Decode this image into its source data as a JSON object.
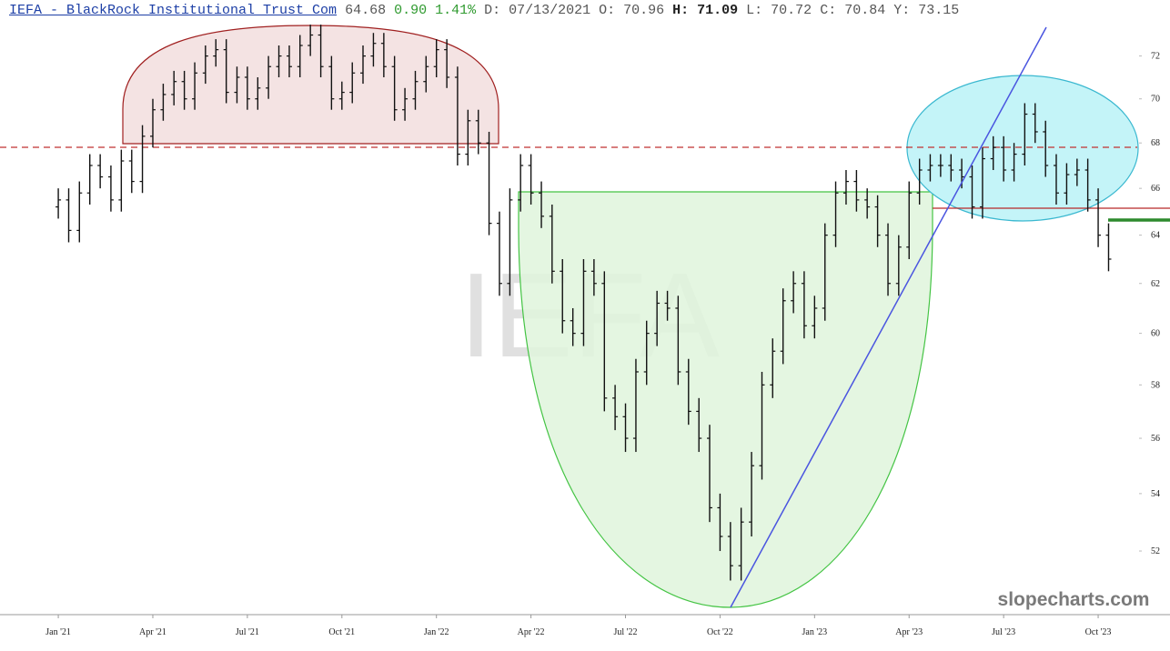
{
  "header": {
    "symbol": "IEFA - BlackRock Institutional Trust Com",
    "last": "64.68",
    "change": "0.90",
    "change_pct": "1.41%",
    "date": "D: 07/13/2021",
    "open": "O: 70.96",
    "high": "H: 71.09",
    "low": "L: 70.72",
    "close": "C: 70.84",
    "prev": "Y: 73.15"
  },
  "watermark": "IEFA",
  "brand": "slopecharts.com",
  "chart_data": {
    "type": "ohlc",
    "color": "#111111",
    "log_scale": true,
    "xlim": [
      -1.85,
      34.24
    ],
    "ylim": [
      49.87,
      74.7
    ],
    "xticks": [
      {
        "value": 0,
        "label": "Jan '21"
      },
      {
        "value": 3,
        "label": "Apr '21"
      },
      {
        "value": 6,
        "label": "Jul '21"
      },
      {
        "value": 9,
        "label": "Oct '21"
      },
      {
        "value": 12,
        "label": "Jan '22"
      },
      {
        "value": 15,
        "label": "Apr '22"
      },
      {
        "value": 18,
        "label": "Jul '22"
      },
      {
        "value": 21,
        "label": "Oct '22"
      },
      {
        "value": 24,
        "label": "Jan '23"
      },
      {
        "value": 27,
        "label": "Apr '23"
      },
      {
        "value": 30,
        "label": "Jul '23"
      },
      {
        "value": 33,
        "label": "Oct '23"
      }
    ],
    "yticks": [
      52,
      54,
      56,
      58,
      60,
      62,
      64,
      66,
      68,
      70,
      72
    ],
    "x": [
      0,
      0.33,
      0.67,
      1,
      1.33,
      1.67,
      2,
      2.33,
      2.67,
      3,
      3.33,
      3.67,
      4,
      4.33,
      4.67,
      5,
      5.33,
      5.67,
      6,
      6.33,
      6.67,
      7,
      7.33,
      7.67,
      8,
      8.33,
      8.67,
      9,
      9.33,
      9.67,
      10,
      10.33,
      10.67,
      11,
      11.33,
      11.67,
      12,
      12.33,
      12.67,
      13,
      13.33,
      13.67,
      14,
      14.33,
      14.67,
      15,
      15.33,
      15.67,
      16,
      16.33,
      16.67,
      17,
      17.33,
      17.67,
      18,
      18.33,
      18.67,
      19,
      19.33,
      19.67,
      20,
      20.33,
      20.67,
      21,
      21.33,
      21.67,
      22,
      22.33,
      22.67,
      23,
      23.33,
      23.67,
      24,
      24.33,
      24.67,
      25,
      25.33,
      25.67,
      26,
      26.33,
      26.67,
      27,
      27.33,
      27.67,
      28,
      28.33,
      28.67,
      29,
      29.33,
      29.67,
      30,
      30.33,
      30.67,
      31,
      31.33,
      31.67,
      32,
      32.33,
      32.67,
      33,
      33.33
    ],
    "open": [
      65.2,
      65.5,
      64.2,
      65.8,
      67,
      66.5,
      65.5,
      67.2,
      66.3,
      68.3,
      69.5,
      70.2,
      70.8,
      70,
      71.2,
      72,
      72.3,
      70.3,
      71,
      70,
      70.5,
      71.5,
      72,
      71.5,
      72.5,
      73,
      71.5,
      70,
      70.3,
      71.2,
      72,
      72.6,
      71.5,
      69.5,
      70,
      70.8,
      71.5,
      72.3,
      71,
      67.5,
      69,
      68,
      64.5,
      62,
      65.5,
      67,
      65.8,
      64.8,
      62.5,
      60.5,
      60,
      62.5,
      62,
      57.5,
      56.8,
      56,
      58.5,
      60,
      61.2,
      61,
      58.5,
      57,
      56,
      53.5,
      52.5,
      51.5,
      53,
      55,
      58,
      59.3,
      61.3,
      62,
      60.3,
      61,
      64,
      65.8,
      66.3,
      65.5,
      65.2,
      64,
      62,
      63.5,
      65.8,
      66.8,
      67,
      67,
      66.8,
      66.5,
      65.2,
      67.3,
      67.8,
      66.8,
      67.5,
      69.3,
      68.5,
      67,
      65.8,
      66.6,
      66.8,
      65.5,
      64
    ],
    "high": [
      66,
      66,
      66.3,
      67.5,
      67.5,
      67,
      67.7,
      67.7,
      68.8,
      70,
      70.7,
      71.3,
      71.3,
      71.7,
      72.5,
      72.8,
      72.8,
      71.5,
      71.5,
      71,
      72,
      72.5,
      72.5,
      73,
      73.5,
      73.5,
      72,
      70.8,
      71.7,
      72.5,
      73.1,
      73.1,
      72,
      70.5,
      71.3,
      72,
      72.8,
      72.8,
      71.5,
      69.5,
      69.5,
      68.5,
      65,
      66,
      67.5,
      67.5,
      66.3,
      65.3,
      63,
      61,
      63,
      63,
      62.5,
      58,
      57.3,
      59,
      60.5,
      61.7,
      61.7,
      61.5,
      59,
      57.5,
      56.5,
      54,
      53,
      53.5,
      55.5,
      58.5,
      59.8,
      61.8,
      62.5,
      62.5,
      61.5,
      64.5,
      66.3,
      66.8,
      66.8,
      66,
      65.7,
      64.5,
      64,
      66.3,
      67.3,
      67.5,
      67.5,
      67.5,
      67.3,
      67,
      67.8,
      68.3,
      68.3,
      68,
      69.8,
      69.8,
      69,
      67.5,
      67.1,
      67.3,
      67.3,
      66,
      64.5
    ],
    "low": [
      64.7,
      63.7,
      63.7,
      65.3,
      66,
      65,
      65,
      65.8,
      65.8,
      67.8,
      69,
      69.7,
      69.5,
      69.5,
      70.7,
      71.5,
      69.8,
      69.8,
      69.5,
      69.5,
      70,
      71,
      71,
      71,
      72,
      71,
      69.5,
      69.5,
      69.8,
      70.7,
      71.5,
      71,
      69,
      69,
      69.5,
      70.3,
      71,
      70.5,
      67,
      67,
      67.5,
      64,
      61.5,
      61.5,
      65,
      65.3,
      64.3,
      62,
      60,
      59.5,
      59.5,
      61.5,
      57,
      56.3,
      55.5,
      55.5,
      58,
      59.5,
      60.5,
      58,
      56.5,
      55.5,
      53,
      52,
      51,
      51,
      52.5,
      54.5,
      57.5,
      58.8,
      60.8,
      59.8,
      59.8,
      60.5,
      63.5,
      65.3,
      65,
      64.7,
      63.5,
      61.5,
      61.5,
      63,
      65.3,
      66.3,
      66.5,
      66.3,
      66,
      64.7,
      64.7,
      66.8,
      66.3,
      66.3,
      67,
      68,
      66.5,
      65.3,
      65.3,
      66.1,
      65,
      63.5,
      62.5
    ],
    "close": [
      65.5,
      64.2,
      65.8,
      67,
      66.5,
      65.5,
      67.2,
      66.3,
      68.3,
      69.5,
      70.2,
      70.8,
      70,
      71.2,
      72,
      72.3,
      70.3,
      71,
      70,
      70.5,
      71.5,
      72,
      71.5,
      72.5,
      73,
      71.5,
      70,
      70.3,
      71.2,
      72,
      72.6,
      71.5,
      69.5,
      70,
      70.8,
      71.5,
      72.3,
      71,
      67.5,
      69,
      68,
      64.5,
      62,
      65.5,
      67,
      65.8,
      64.8,
      62.5,
      60.5,
      60,
      62.5,
      62,
      57.5,
      56.8,
      56,
      58.5,
      60,
      61.2,
      61,
      58.5,
      57,
      56,
      53.5,
      52.5,
      51.5,
      53,
      55,
      58,
      59.3,
      61.3,
      62,
      60.3,
      61,
      64,
      65.8,
      66.3,
      65.5,
      65.2,
      64,
      62,
      63.5,
      65.8,
      66.8,
      67,
      67,
      66.8,
      66.5,
      65.2,
      67.3,
      67.8,
      66.8,
      67.5,
      69.3,
      68.5,
      67,
      65.8,
      66.6,
      66.8,
      65.5,
      64,
      63
    ]
  }
}
